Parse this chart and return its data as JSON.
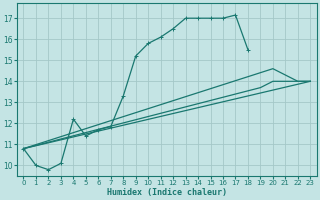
{
  "background_color": "#c4e4e4",
  "grid_color": "#a4c8c8",
  "line_color": "#1a7870",
  "xlabel": "Humidex (Indice chaleur)",
  "xlim": [
    -0.5,
    23.5
  ],
  "ylim": [
    9.5,
    17.7
  ],
  "yticks": [
    10,
    11,
    12,
    13,
    14,
    15,
    16,
    17
  ],
  "xticks": [
    0,
    1,
    2,
    3,
    4,
    5,
    6,
    7,
    8,
    9,
    10,
    11,
    12,
    13,
    14,
    15,
    16,
    17,
    18,
    19,
    20,
    21,
    22,
    23
  ],
  "main_line": {
    "x": [
      0,
      1,
      2,
      3,
      4,
      5,
      6,
      7,
      8,
      9,
      10,
      11,
      12,
      13,
      14,
      15,
      16,
      17,
      18
    ],
    "y": [
      10.8,
      10.0,
      9.8,
      10.1,
      12.2,
      11.4,
      11.7,
      11.85,
      13.3,
      15.2,
      15.8,
      16.1,
      16.5,
      17.0,
      17.0,
      17.0,
      17.0,
      17.15,
      15.5
    ]
  },
  "fan_lines": [
    {
      "x": [
        0,
        23
      ],
      "y": [
        10.8,
        14.0
      ]
    },
    {
      "x": [
        0,
        20,
        21,
        22,
        23
      ],
      "y": [
        10.8,
        14.6,
        14.3,
        14.0,
        14.0
      ]
    },
    {
      "x": [
        0,
        19,
        20,
        21,
        22,
        23
      ],
      "y": [
        10.8,
        13.7,
        14.0,
        14.0,
        14.0,
        14.0
      ]
    }
  ]
}
